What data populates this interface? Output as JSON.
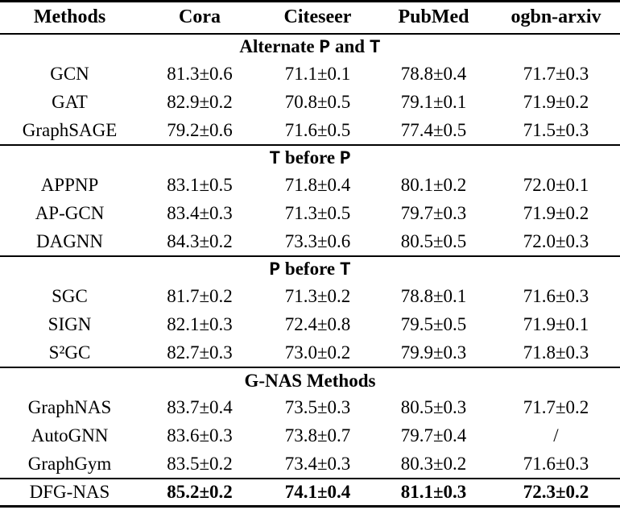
{
  "colors": {
    "text": "#000000",
    "background": "#ffffff",
    "rule": "#000000"
  },
  "table": {
    "columns": [
      "Methods",
      "Cora",
      "Citeseer",
      "PubMed",
      "ogbn-arxiv"
    ],
    "sections": [
      {
        "title_parts": [
          {
            "text": "Alternate ",
            "mono": false
          },
          {
            "text": "P",
            "mono": true
          },
          {
            "text": " and ",
            "mono": false
          },
          {
            "text": "T",
            "mono": true
          }
        ],
        "rows": [
          {
            "method": "GCN",
            "values": [
              "81.3±0.6",
              "71.1±0.1",
              "78.8±0.4",
              "71.7±0.3"
            ],
            "bold": false
          },
          {
            "method": "GAT",
            "values": [
              "82.9±0.2",
              "70.8±0.5",
              "79.1±0.1",
              "71.9±0.2"
            ],
            "bold": false
          },
          {
            "method": "GraphSAGE",
            "values": [
              "79.2±0.6",
              "71.6±0.5",
              "77.4±0.5",
              "71.5±0.3"
            ],
            "bold": false
          }
        ]
      },
      {
        "title_parts": [
          {
            "text": "T",
            "mono": true
          },
          {
            "text": " before ",
            "mono": false
          },
          {
            "text": "P",
            "mono": true
          }
        ],
        "rows": [
          {
            "method": "APPNP",
            "values": [
              "83.1±0.5",
              "71.8±0.4",
              "80.1±0.2",
              "72.0±0.1"
            ],
            "bold": false
          },
          {
            "method": "AP-GCN",
            "values": [
              "83.4±0.3",
              "71.3±0.5",
              "79.7±0.3",
              "71.9±0.2"
            ],
            "bold": false
          },
          {
            "method": "DAGNN",
            "values": [
              "84.3±0.2",
              "73.3±0.6",
              "80.5±0.5",
              "72.0±0.3"
            ],
            "bold": false
          }
        ]
      },
      {
        "title_parts": [
          {
            "text": "P",
            "mono": true
          },
          {
            "text": " before ",
            "mono": false
          },
          {
            "text": "T",
            "mono": true
          }
        ],
        "rows": [
          {
            "method": "SGC",
            "values": [
              "81.7±0.2",
              "71.3±0.2",
              "78.8±0.1",
              "71.6±0.3"
            ],
            "bold": false
          },
          {
            "method": "SIGN",
            "values": [
              "82.1±0.3",
              "72.4±0.8",
              "79.5±0.5",
              "71.9±0.1"
            ],
            "bold": false
          },
          {
            "method": "S²GC",
            "values": [
              "82.7±0.3",
              "73.0±0.2",
              "79.9±0.3",
              "71.8±0.3"
            ],
            "bold": false
          }
        ]
      },
      {
        "title_parts": [
          {
            "text": "G-NAS Methods",
            "mono": false
          }
        ],
        "rows": [
          {
            "method": "GraphNAS",
            "values": [
              "83.7±0.4",
              "73.5±0.3",
              "80.5±0.3",
              "71.7±0.2"
            ],
            "bold": false
          },
          {
            "method": "AutoGNN",
            "values": [
              "83.6±0.3",
              "73.8±0.7",
              "79.7±0.4",
              "/"
            ],
            "bold": false
          },
          {
            "method": "GraphGym",
            "values": [
              "83.5±0.2",
              "73.4±0.3",
              "80.3±0.2",
              "71.6±0.3"
            ],
            "bold": false
          }
        ]
      },
      {
        "title_parts": [],
        "rows": [
          {
            "method": "DFG-NAS",
            "values": [
              "85.2±0.2",
              "74.1±0.4",
              "81.1±0.3",
              "72.3±0.2"
            ],
            "bold": true
          }
        ]
      }
    ]
  }
}
